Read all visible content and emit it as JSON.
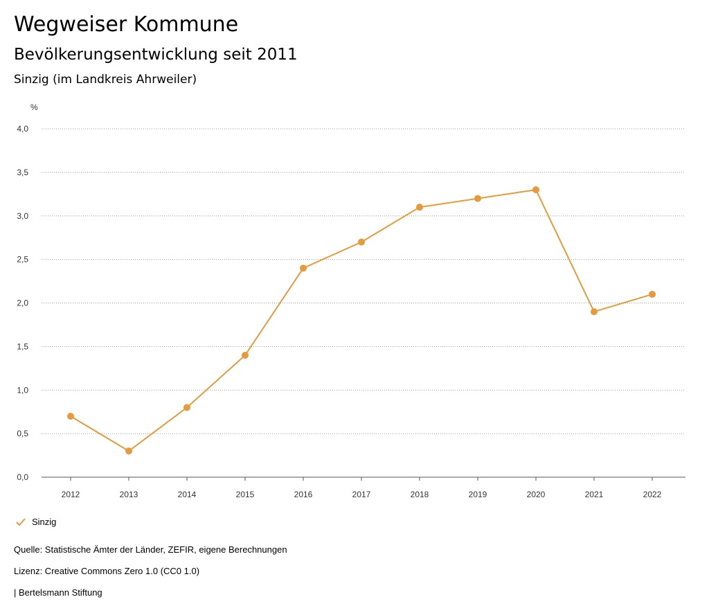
{
  "header": {
    "title": "Wegweiser Kommune",
    "subtitle": "Bevölkerungsentwicklung seit 2011",
    "region": "Sinzig (im Landkreis Ahrweiler)"
  },
  "chart_data": {
    "type": "line",
    "ylabel": "%",
    "x": [
      "2012",
      "2013",
      "2014",
      "2015",
      "2016",
      "2017",
      "2018",
      "2019",
      "2020",
      "2021",
      "2022"
    ],
    "series": [
      {
        "name": "Sinzig",
        "color": "#e8993a",
        "values": [
          0.7,
          0.3,
          0.8,
          1.4,
          2.4,
          2.7,
          3.1,
          3.2,
          3.3,
          1.9,
          2.1
        ]
      }
    ],
    "ylim": [
      0,
      4
    ],
    "yticks": [
      0,
      0.5,
      1.0,
      1.5,
      2.0,
      2.5,
      3.0,
      3.5,
      4.0
    ],
    "ytick_labels": [
      "0,0",
      "0,5",
      "1,0",
      "1,5",
      "2,0",
      "2,5",
      "3,0",
      "3,5",
      "4,0"
    ],
    "grid": true,
    "legend": "bottom-left"
  },
  "legend": {
    "label": "Sinzig"
  },
  "footer": {
    "source": "Quelle: Statistische Ämter der Länder, ZEFIR, eigene Berechnungen",
    "license": "Lizenz: Creative Commons Zero 1.0 (CC0 1.0)",
    "publisher": "| Bertelsmann Stiftung"
  }
}
